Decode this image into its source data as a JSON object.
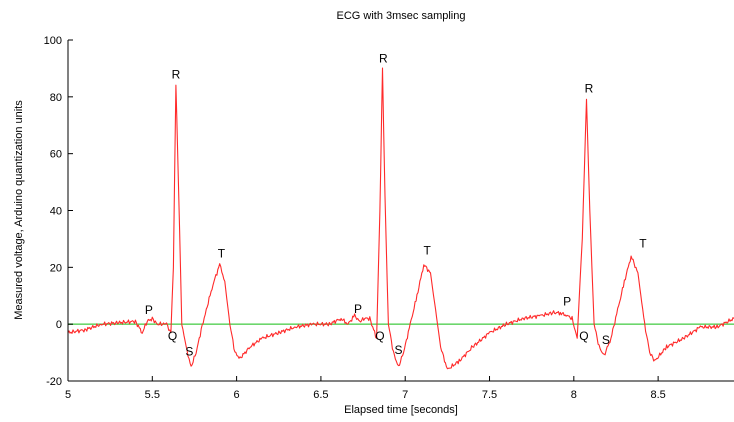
{
  "chart_data": {
    "type": "line",
    "title": "ECG with 3msec sampling",
    "xlabel": "Elapsed time [seconds]",
    "ylabel": "Measured voltage, Arduino quantization units",
    "xlim": [
      5,
      8.95
    ],
    "ylim": [
      -20,
      100
    ],
    "x_ticks": [
      5,
      5.5,
      6,
      6.5,
      7,
      7.5,
      8,
      8.5
    ],
    "x_tick_labels": [
      "5",
      "5.5",
      "6",
      "6.5",
      "7",
      "7.5",
      "8",
      "8.5"
    ],
    "y_ticks": [
      -20,
      0,
      20,
      40,
      60,
      80,
      100
    ],
    "y_tick_labels": [
      "-20",
      "0",
      "20",
      "40",
      "60",
      "80",
      "100"
    ],
    "grid": false,
    "legend": "none",
    "colors": {
      "signal": "#ff2a2a",
      "baseline": "#6dd66d",
      "axis": "#000000"
    },
    "series": [
      {
        "x": [
          5.0,
          5.1,
          5.2,
          5.3,
          5.4,
          5.44,
          5.47,
          5.5,
          5.53,
          5.56,
          5.585,
          5.61,
          5.625,
          5.64,
          5.655,
          5.675,
          5.7,
          5.73,
          5.76,
          5.79,
          5.82,
          5.86,
          5.9,
          5.93,
          5.96,
          5.99,
          6.02,
          6.08,
          6.15,
          6.25,
          6.35,
          6.45,
          6.55,
          6.62,
          6.66,
          6.7,
          6.73,
          6.76,
          6.79,
          6.83,
          6.85,
          6.865,
          6.88,
          6.9,
          6.93,
          6.96,
          6.99,
          7.03,
          7.07,
          7.11,
          7.15,
          7.18,
          7.21,
          7.25,
          7.32,
          7.4,
          7.5,
          7.6,
          7.7,
          7.8,
          7.88,
          7.92,
          7.96,
          7.99,
          8.02,
          8.05,
          8.075,
          8.095,
          8.12,
          8.15,
          8.18,
          8.22,
          8.26,
          8.3,
          8.34,
          8.38,
          8.42,
          8.45,
          8.48,
          8.55,
          8.65,
          8.75,
          8.85,
          8.95
        ],
        "y": [
          -3,
          -2,
          0,
          0.5,
          1,
          -3,
          1,
          2,
          0,
          0,
          0,
          -3,
          20,
          84,
          50,
          0,
          -8,
          -15,
          -10,
          -2,
          5,
          14,
          21,
          15,
          0,
          -10,
          -12,
          -8,
          -5,
          -3,
          -1,
          0,
          0,
          2,
          0,
          3,
          1,
          2,
          2,
          -5,
          40,
          90,
          45,
          0,
          -10,
          -15,
          -10,
          0,
          10,
          21,
          18,
          5,
          -8,
          -16,
          -13,
          -8,
          -3,
          0,
          2,
          3,
          4,
          4,
          3,
          2,
          -5,
          30,
          79,
          40,
          0,
          -8,
          -11,
          -5,
          5,
          15,
          24,
          18,
          0,
          -10,
          -13,
          -8,
          -5,
          -1,
          -1,
          2
        ]
      },
      {
        "x": [
          5,
          8.95
        ],
        "y": [
          0,
          0
        ]
      }
    ],
    "annotations": [
      {
        "text": "P",
        "x": 5.48,
        "y": 3.5
      },
      {
        "text": "Q",
        "x": 5.62,
        "y": -5.5
      },
      {
        "text": "R",
        "x": 5.64,
        "y": 86.5
      },
      {
        "text": "S",
        "x": 5.72,
        "y": -11
      },
      {
        "text": "T",
        "x": 5.91,
        "y": 23.5
      },
      {
        "text": "P",
        "x": 6.72,
        "y": 4
      },
      {
        "text": "Q",
        "x": 6.85,
        "y": -5.5
      },
      {
        "text": "R",
        "x": 6.87,
        "y": 92
      },
      {
        "text": "S",
        "x": 6.96,
        "y": -10.5
      },
      {
        "text": "T",
        "x": 7.13,
        "y": 24.5
      },
      {
        "text": "P",
        "x": 7.96,
        "y": 6.5
      },
      {
        "text": "Q",
        "x": 8.06,
        "y": -5.5
      },
      {
        "text": "R",
        "x": 8.09,
        "y": 81.5
      },
      {
        "text": "S",
        "x": 8.19,
        "y": -7
      },
      {
        "text": "T",
        "x": 8.41,
        "y": 27
      }
    ]
  }
}
